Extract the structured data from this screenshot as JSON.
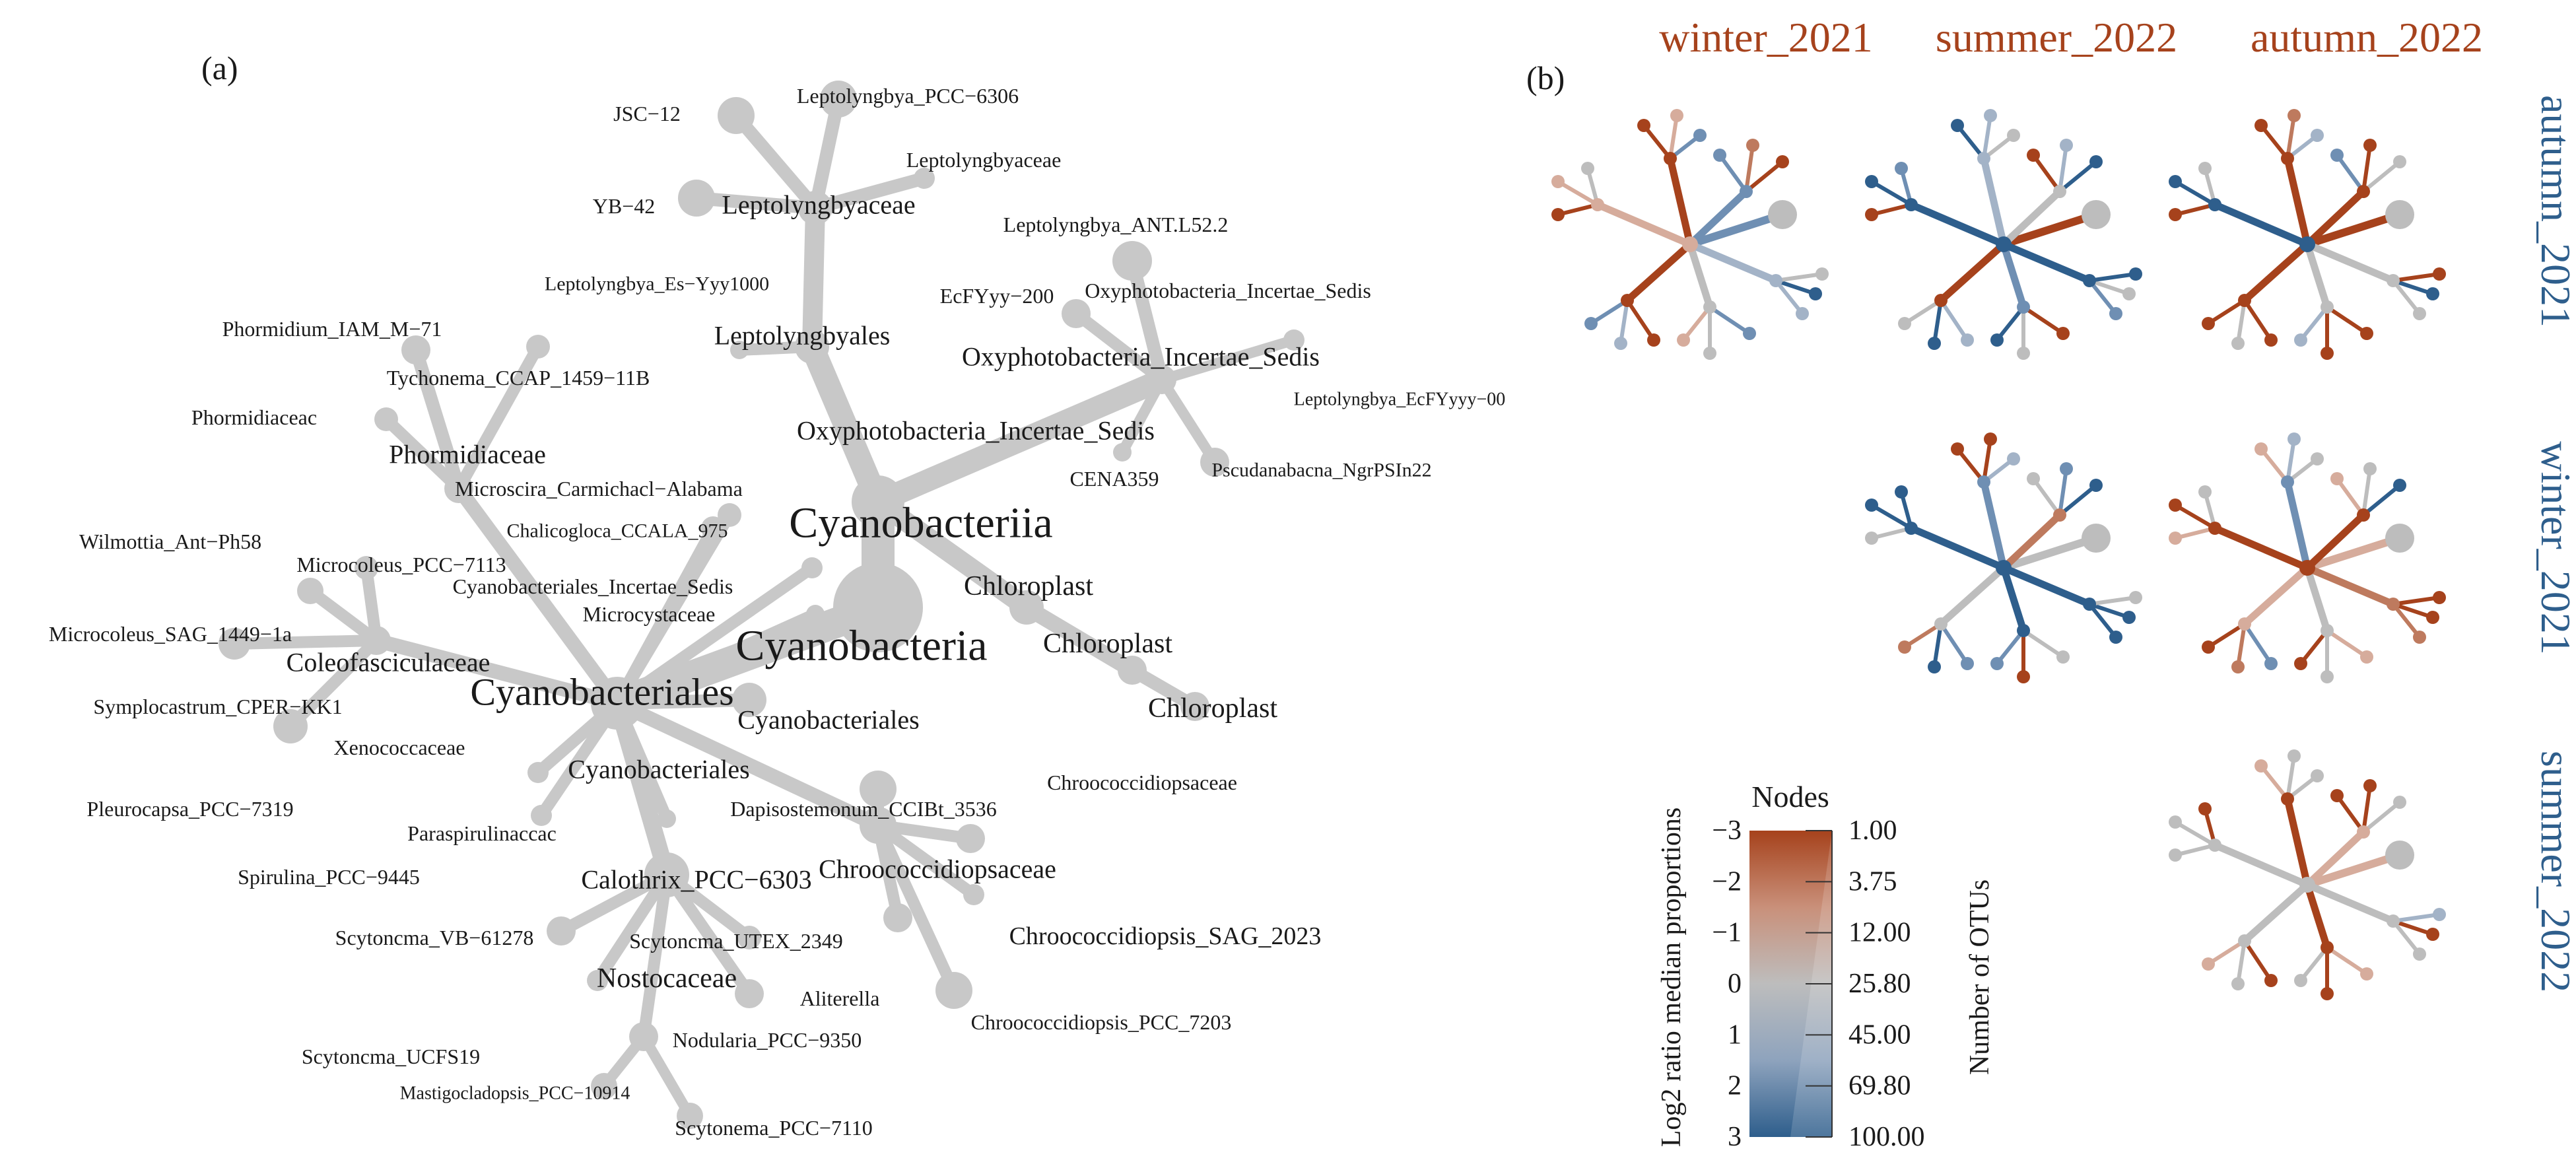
{
  "panel_a": {
    "label": "(a)",
    "labels": {
      "cyanobacteriia": "Cyanobacteriia",
      "cyanobacteria": "Cyanobacteria",
      "cyanobacteriales_main": "Cyanobacteriales",
      "chloroplast_1": "Chloroplast",
      "chloroplast_2": "Chloroplast",
      "chloroplast_3": "Chloroplast",
      "leptolyngbyales": "Leptolyngbyales",
      "leptolyngbyaceae_big": "Leptolyngbyaceae",
      "leptolyngbyaceae_small": "Leptolyngbyaceae",
      "jsc12": "JSC−12",
      "yb42": "YB−42",
      "lepto_pcc6306": "Leptolyngbya_PCC−6306",
      "lepto_es": "Leptolyngbya_Es−Yyy1000",
      "lepto_ant": "Leptolyngbya_ANT.L52.2",
      "ecfyy200": "EcFYyy−200",
      "oxy_sm": "Oxyphotobacteria_Incertae_Sedis",
      "oxy_md": "Oxyphotobacteria_Incertae_Sedis",
      "oxy_lg": "Oxyphotobacteria_Incertae_Sedis",
      "lepto_ecf00": "Leptolyngbya_EcFYyyy−00",
      "cena359": "CENA359",
      "pseudanabaena": "Pscudanabacna_NgrPSIn22",
      "phormidium": "Phormidium_IAM_M−71",
      "tychonema": "Tychonema_CCAP_1459−11B",
      "phormidiaceae_sm": "Phormidiaceac",
      "phormidiaceae_lg": "Phormidiaceae",
      "microseira": "Microscira_Carmichacl−Alabama",
      "chalicogloea": "Chalicogloca_CCALA_975",
      "wilmottia": "Wilmottia_Ant−Ph58",
      "microcoleus_pcc": "Microcoleus_PCC−7113",
      "cyano_incertae": "Cyanobacteriales_Incertae_Sedis",
      "microcystaceae": "Microcystaceae",
      "microcoleus_sag": "Microcoleus_SAG_1449−1a",
      "coleofasciculaceae": "Coleofasciculaceae",
      "symplocastrum": "Symplocastrum_CPER−KK1",
      "xenococcaceae": "Xenococcaceae",
      "cyanobacteriales_2": "Cyanobacteriales",
      "cyanobacteriales_3": "Cyanobacteriales",
      "pleurocapsa": "Pleurocapsa_PCC−7319",
      "paraspirulinaceae": "Paraspirulinaccac",
      "spirulina": "Spirulina_PCC−9445",
      "calothrix": "Calothrix_PCC−6303",
      "dapisostemonum": "Dapisostemonum_CCIBt_3536",
      "chroococcidiopsaceae_sm": "Chroococcidiopsaceae",
      "chroococcidiopsaceae_lg": "Chroococcidiopsaceae",
      "scytonema_vb": "Scytoncma_VB−61278",
      "scytonema_utex": "Scytoncma_UTEX_2349",
      "chroococcidiopsis_sag": "Chroococcidiopsis_SAG_2023",
      "nostocaceae": "Nostocaceae",
      "aliterella": "Aliterella",
      "chroococcidiopsis_pcc": "Chroococcidiopsis_PCC_7203",
      "scytonema_ucfs": "Scytoncma_UCFS19",
      "nodularia": "Nodularia_PCC−9350",
      "mastigocladopsis": "Mastigocladopsis_PCC−10914",
      "scytonema_pcc7110": "Scytonema_PCC−7110"
    }
  },
  "panel_b": {
    "label": "(b)",
    "column_headers": [
      "winter_2021",
      "summer_2022",
      "autumn_2022"
    ],
    "row_headers": [
      "autumn_2021",
      "winter_2021",
      "summer_2022"
    ],
    "colors": {
      "orange_strong": "#A6421C",
      "orange_mid": "#BE7A5E",
      "orange_light": "#D6AC9C",
      "neutral": "#BDBDBD",
      "blue_light": "#A3B3C7",
      "blue_mid": "#6F8FB3",
      "blue_strong": "#2E5E8C"
    },
    "legend": {
      "title": "Nodes",
      "color_axis_label": "Log2 ratio median proportions",
      "color_ticks": [
        "−3",
        "−2",
        "−1",
        "0",
        "1",
        "2",
        "3"
      ],
      "size_axis_label": "Number of OTUs",
      "size_values": [
        "1.00",
        "3.75",
        "12.00",
        "25.80",
        "45.00",
        "69.80",
        "100.00"
      ]
    }
  }
}
